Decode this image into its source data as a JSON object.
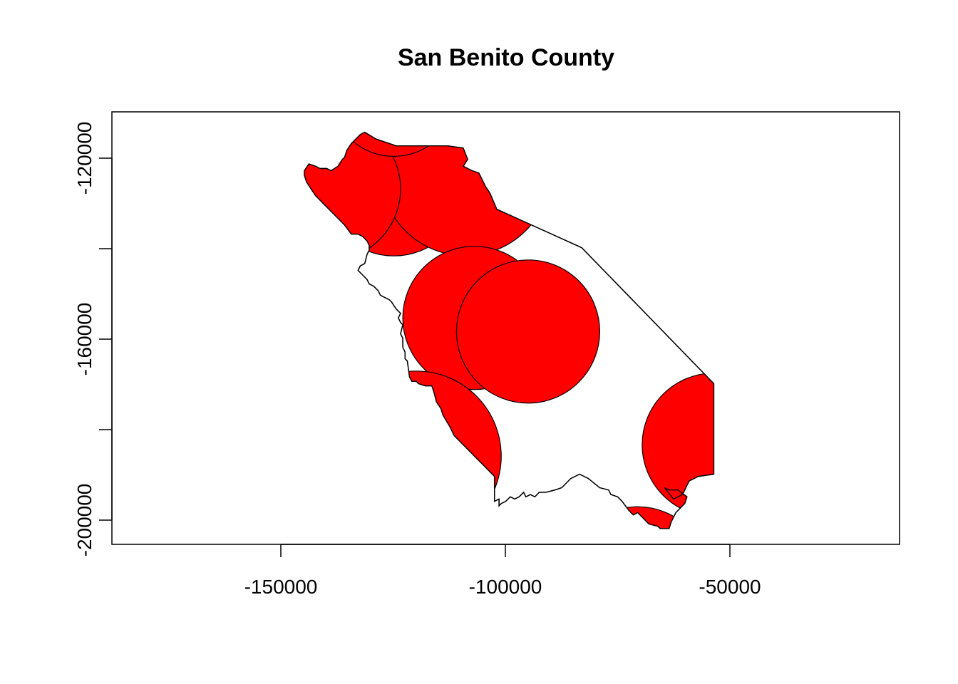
{
  "map": {
    "title": "San Benito County",
    "county_fill": "#ffffff",
    "buffer_fill": "#ff0000",
    "outline_color": "#000000",
    "x_axis": {
      "range": [
        -188000,
        -12000
      ],
      "ticks": [
        -150000,
        -100000,
        -50000
      ],
      "tick_labels": [
        "-150000",
        "-100000",
        "-50000"
      ]
    },
    "y_axis": {
      "range": [
        -205500,
        -110000
      ],
      "ticks": [
        -120000,
        -140000,
        -160000,
        -180000,
        -200000
      ],
      "labeled_ticks": [
        -120000,
        -160000,
        -200000
      ],
      "tick_labels": [
        "-120000",
        "-160000",
        "-200000"
      ]
    },
    "boundary_xy": [
      [
        -131500,
        -114500
      ],
      [
        -129000,
        -116000
      ],
      [
        -124500,
        -117500
      ],
      [
        -113000,
        -117500
      ],
      [
        -109500,
        -118000
      ],
      [
        -108500,
        -120500
      ],
      [
        -109500,
        -122000
      ],
      [
        -108500,
        -122500
      ],
      [
        -107500,
        -123000
      ],
      [
        -106000,
        -123500
      ],
      [
        -105500,
        -124500
      ],
      [
        -104500,
        -126500
      ],
      [
        -103500,
        -128000
      ],
      [
        -102000,
        -131500
      ],
      [
        -83000,
        -140000
      ],
      [
        -53500,
        -170000
      ],
      [
        -53500,
        -190000
      ],
      [
        -57000,
        -190500
      ],
      [
        -59000,
        -191500
      ],
      [
        -60500,
        -194500
      ],
      [
        -62500,
        -195500
      ],
      [
        -64500,
        -193000
      ],
      [
        -63500,
        -193500
      ],
      [
        -61500,
        -193500
      ],
      [
        -59500,
        -195000
      ],
      [
        -60000,
        -196500
      ],
      [
        -62000,
        -198500
      ],
      [
        -63000,
        -200500
      ],
      [
        -63500,
        -202000
      ],
      [
        -64000,
        -202000
      ],
      [
        -65500,
        -202000
      ],
      [
        -66000,
        -201500
      ],
      [
        -68000,
        -201000
      ],
      [
        -69500,
        -199500
      ],
      [
        -70500,
        -198500
      ],
      [
        -71500,
        -199000
      ],
      [
        -72500,
        -198000
      ],
      [
        -74000,
        -196000
      ],
      [
        -75000,
        -195000
      ],
      [
        -76500,
        -194500
      ],
      [
        -77000,
        -193500
      ],
      [
        -79000,
        -193000
      ],
      [
        -81500,
        -191000
      ],
      [
        -83500,
        -190000
      ],
      [
        -85500,
        -191000
      ],
      [
        -86500,
        -192000
      ],
      [
        -87500,
        -193000
      ],
      [
        -89000,
        -193500
      ],
      [
        -91000,
        -194000
      ],
      [
        -92500,
        -194000
      ],
      [
        -93500,
        -195000
      ],
      [
        -94500,
        -194500
      ],
      [
        -95500,
        -195000
      ],
      [
        -96000,
        -194000
      ],
      [
        -96500,
        -194500
      ],
      [
        -97000,
        -195000
      ],
      [
        -98000,
        -195500
      ],
      [
        -99000,
        -195000
      ],
      [
        -100000,
        -196000
      ],
      [
        -101000,
        -196500
      ],
      [
        -101500,
        -197000
      ],
      [
        -101500,
        -195500
      ],
      [
        -102500,
        -196000
      ],
      [
        -102500,
        -190500
      ],
      [
        -104000,
        -189000
      ],
      [
        -105500,
        -187500
      ],
      [
        -107000,
        -186000
      ],
      [
        -108500,
        -184500
      ],
      [
        -111500,
        -181500
      ],
      [
        -112500,
        -179500
      ],
      [
        -114000,
        -177000
      ],
      [
        -114500,
        -175500
      ],
      [
        -115500,
        -174000
      ],
      [
        -116000,
        -172000
      ],
      [
        -116500,
        -170500
      ],
      [
        -118000,
        -170500
      ],
      [
        -119500,
        -170000
      ],
      [
        -120000,
        -169500
      ],
      [
        -121000,
        -169500
      ],
      [
        -121500,
        -168500
      ],
      [
        -122000,
        -165000
      ],
      [
        -122500,
        -164500
      ],
      [
        -122500,
        -163000
      ],
      [
        -123000,
        -162000
      ],
      [
        -123000,
        -160000
      ],
      [
        -123500,
        -159000
      ],
      [
        -123000,
        -157000
      ],
      [
        -123500,
        -156500
      ],
      [
        -124000,
        -155500
      ],
      [
        -123500,
        -154500
      ],
      [
        -124500,
        -153500
      ],
      [
        -125500,
        -152000
      ],
      [
        -126000,
        -151500
      ],
      [
        -127000,
        -151000
      ],
      [
        -128000,
        -150500
      ],
      [
        -128500,
        -149500
      ],
      [
        -129500,
        -148500
      ],
      [
        -130500,
        -148000
      ],
      [
        -131000,
        -147000
      ],
      [
        -131500,
        -146500
      ],
      [
        -132000,
        -146000
      ],
      [
        -133000,
        -145000
      ],
      [
        -132500,
        -144000
      ],
      [
        -131500,
        -143500
      ],
      [
        -131000,
        -141500
      ],
      [
        -130500,
        -140500
      ],
      [
        -130500,
        -139500
      ],
      [
        -131000,
        -138500
      ],
      [
        -132000,
        -137500
      ],
      [
        -133000,
        -137000
      ],
      [
        -134500,
        -137000
      ],
      [
        -136000,
        -135000
      ],
      [
        -137500,
        -133500
      ],
      [
        -139000,
        -132000
      ],
      [
        -140000,
        -131000
      ],
      [
        -141000,
        -130000
      ],
      [
        -142500,
        -128500
      ],
      [
        -143500,
        -127000
      ],
      [
        -144500,
        -125500
      ],
      [
        -145000,
        -124000
      ],
      [
        -145000,
        -123000
      ],
      [
        -144000,
        -121500
      ],
      [
        -142500,
        -122000
      ],
      [
        -141500,
        -122500
      ],
      [
        -140000,
        -122500
      ],
      [
        -139000,
        -123000
      ],
      [
        -137500,
        -122000
      ],
      [
        -136500,
        -120500
      ],
      [
        -136000,
        -120000
      ],
      [
        -135500,
        -118500
      ],
      [
        -134500,
        -117000
      ],
      [
        -133500,
        -116000
      ],
      [
        -132500,
        -115000
      ]
    ],
    "buffers": [
      {
        "x": -125000,
        "y": -126000,
        "r": 16000
      },
      {
        "x": -109000,
        "y": -123000,
        "r": 19000
      },
      {
        "x": -139500,
        "y": -127000,
        "r": 16000
      },
      {
        "x": -125000,
        "y": -106000,
        "r": 14000
      },
      {
        "x": -107000,
        "y": -155500,
        "r": 16000
      },
      {
        "x": -95000,
        "y": -158500,
        "r": 16000
      },
      {
        "x": -53500,
        "y": -183500,
        "r": 16000
      },
      {
        "x": -70500,
        "y": -213000,
        "r": 16000
      },
      {
        "x": -120000,
        "y": -186000,
        "r": 19000
      }
    ]
  }
}
